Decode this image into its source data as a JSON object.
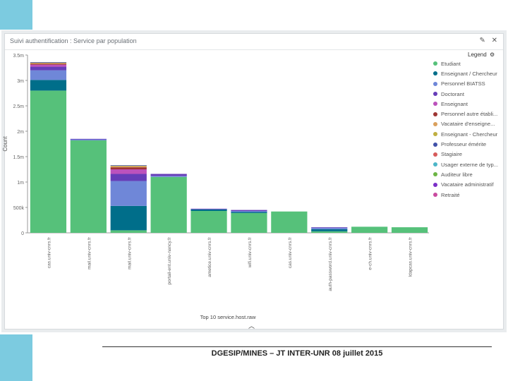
{
  "panel": {
    "title": "Suivi authentification : Service par population",
    "edit_icon": "pencil-icon",
    "close_icon": "close-icon",
    "collapse_icon": "chevron-up-icon"
  },
  "legend": {
    "title": "Legend",
    "icon": "gear-icon",
    "items": [
      {
        "label": "Etudiant",
        "color": "#56c17a"
      },
      {
        "label": "Enseignant / Chercheur",
        "color": "#006e8a"
      },
      {
        "label": "Personnel BIATSS",
        "color": "#6f87d8"
      },
      {
        "label": "Doctorant",
        "color": "#663db8"
      },
      {
        "label": "Enseignant",
        "color": "#bc52bc"
      },
      {
        "label": "Personnel autre établi...",
        "color": "#9e3533"
      },
      {
        "label": "Vacataire d'enseigne...",
        "color": "#daa05d"
      },
      {
        "label": "Enseignant - Chercheur",
        "color": "#bfaf40"
      },
      {
        "label": "Professeur émérite",
        "color": "#4050a8"
      },
      {
        "label": "Stagiaire",
        "color": "#d75b5b"
      },
      {
        "label": "Usager externe de typ...",
        "color": "#4db6c8"
      },
      {
        "label": "Auditeur libre",
        "color": "#6cb544"
      },
      {
        "label": "Vacataire administratif",
        "color": "#7b2fc7"
      },
      {
        "label": "Retraité",
        "color": "#c94b9f"
      }
    ]
  },
  "chart_data": {
    "type": "bar",
    "stacked": true,
    "title": "Suivi authentification : Service par population",
    "xlabel": "Top 10 service.host.raw",
    "ylabel": "Count",
    "ylim": [
      0,
      3500000
    ],
    "yticks": [
      0,
      500000,
      1000000,
      1500000,
      2000000,
      2500000,
      3000000,
      3500000
    ],
    "ytick_labels": [
      "0",
      "500k",
      "1m",
      "1.5m",
      "2m",
      "2.5m",
      "3m",
      "3.5m"
    ],
    "categories": [
      "cas.univ-cnrs.fr",
      "mail.univ-cnrs.fr",
      "mail.univ-cnrs.fr",
      "portail-ent.univ-nancy.fr",
      "ametice.univ-cnrs.fr",
      "wifi.univ-cnrs.fr",
      "cas.univ-cnrs.fr",
      "auth-password.univ-cnrs.fr",
      "e-ch.univ-cnrs.fr",
      "ldapcas.univ-cnrs.fr"
    ],
    "series": [
      {
        "name": "Etudiant",
        "values": [
          2800000,
          1820000,
          50000,
          1100000,
          430000,
          390000,
          420000,
          30000,
          120000,
          110000
        ]
      },
      {
        "name": "Enseignant / Chercheur",
        "values": [
          210000,
          0,
          480000,
          0,
          30000,
          20000,
          0,
          40000,
          0,
          0
        ]
      },
      {
        "name": "Personnel BIATSS",
        "values": [
          190000,
          20000,
          490000,
          20000,
          10000,
          20000,
          0,
          30000,
          0,
          0
        ]
      },
      {
        "name": "Doctorant",
        "values": [
          70000,
          10000,
          140000,
          40000,
          5000,
          20000,
          0,
          10000,
          0,
          0
        ]
      },
      {
        "name": "Enseignant",
        "values": [
          40000,
          0,
          90000,
          0,
          0,
          0,
          0,
          0,
          0,
          0
        ]
      },
      {
        "name": "Personnel autre établi...",
        "values": [
          20000,
          0,
          40000,
          0,
          0,
          0,
          0,
          0,
          0,
          0
        ]
      },
      {
        "name": "Vacataire d'enseigne...",
        "values": [
          10000,
          0,
          20000,
          0,
          0,
          0,
          0,
          0,
          0,
          0
        ]
      },
      {
        "name": "Enseignant - Chercheur",
        "values": [
          10000,
          0,
          10000,
          0,
          0,
          0,
          0,
          0,
          0,
          0
        ]
      },
      {
        "name": "Professeur émérite",
        "values": [
          10000,
          0,
          10000,
          0,
          0,
          0,
          0,
          0,
          0,
          0
        ]
      },
      {
        "name": "Stagiaire",
        "values": [
          0,
          0,
          0,
          0,
          0,
          0,
          0,
          0,
          0,
          0
        ]
      },
      {
        "name": "Usager externe de typ...",
        "values": [
          0,
          0,
          0,
          0,
          0,
          0,
          0,
          0,
          0,
          0
        ]
      },
      {
        "name": "Auditeur libre",
        "values": [
          0,
          0,
          0,
          0,
          0,
          0,
          0,
          0,
          0,
          0
        ]
      },
      {
        "name": "Vacataire administratif",
        "values": [
          0,
          0,
          0,
          0,
          0,
          0,
          0,
          0,
          0,
          0
        ]
      },
      {
        "name": "Retraité",
        "values": [
          0,
          0,
          0,
          0,
          0,
          0,
          0,
          0,
          0,
          0
        ]
      }
    ]
  },
  "footer": {
    "text": "DGESIP/MINES – JT INTER-UNR 08 juillet 2015"
  }
}
